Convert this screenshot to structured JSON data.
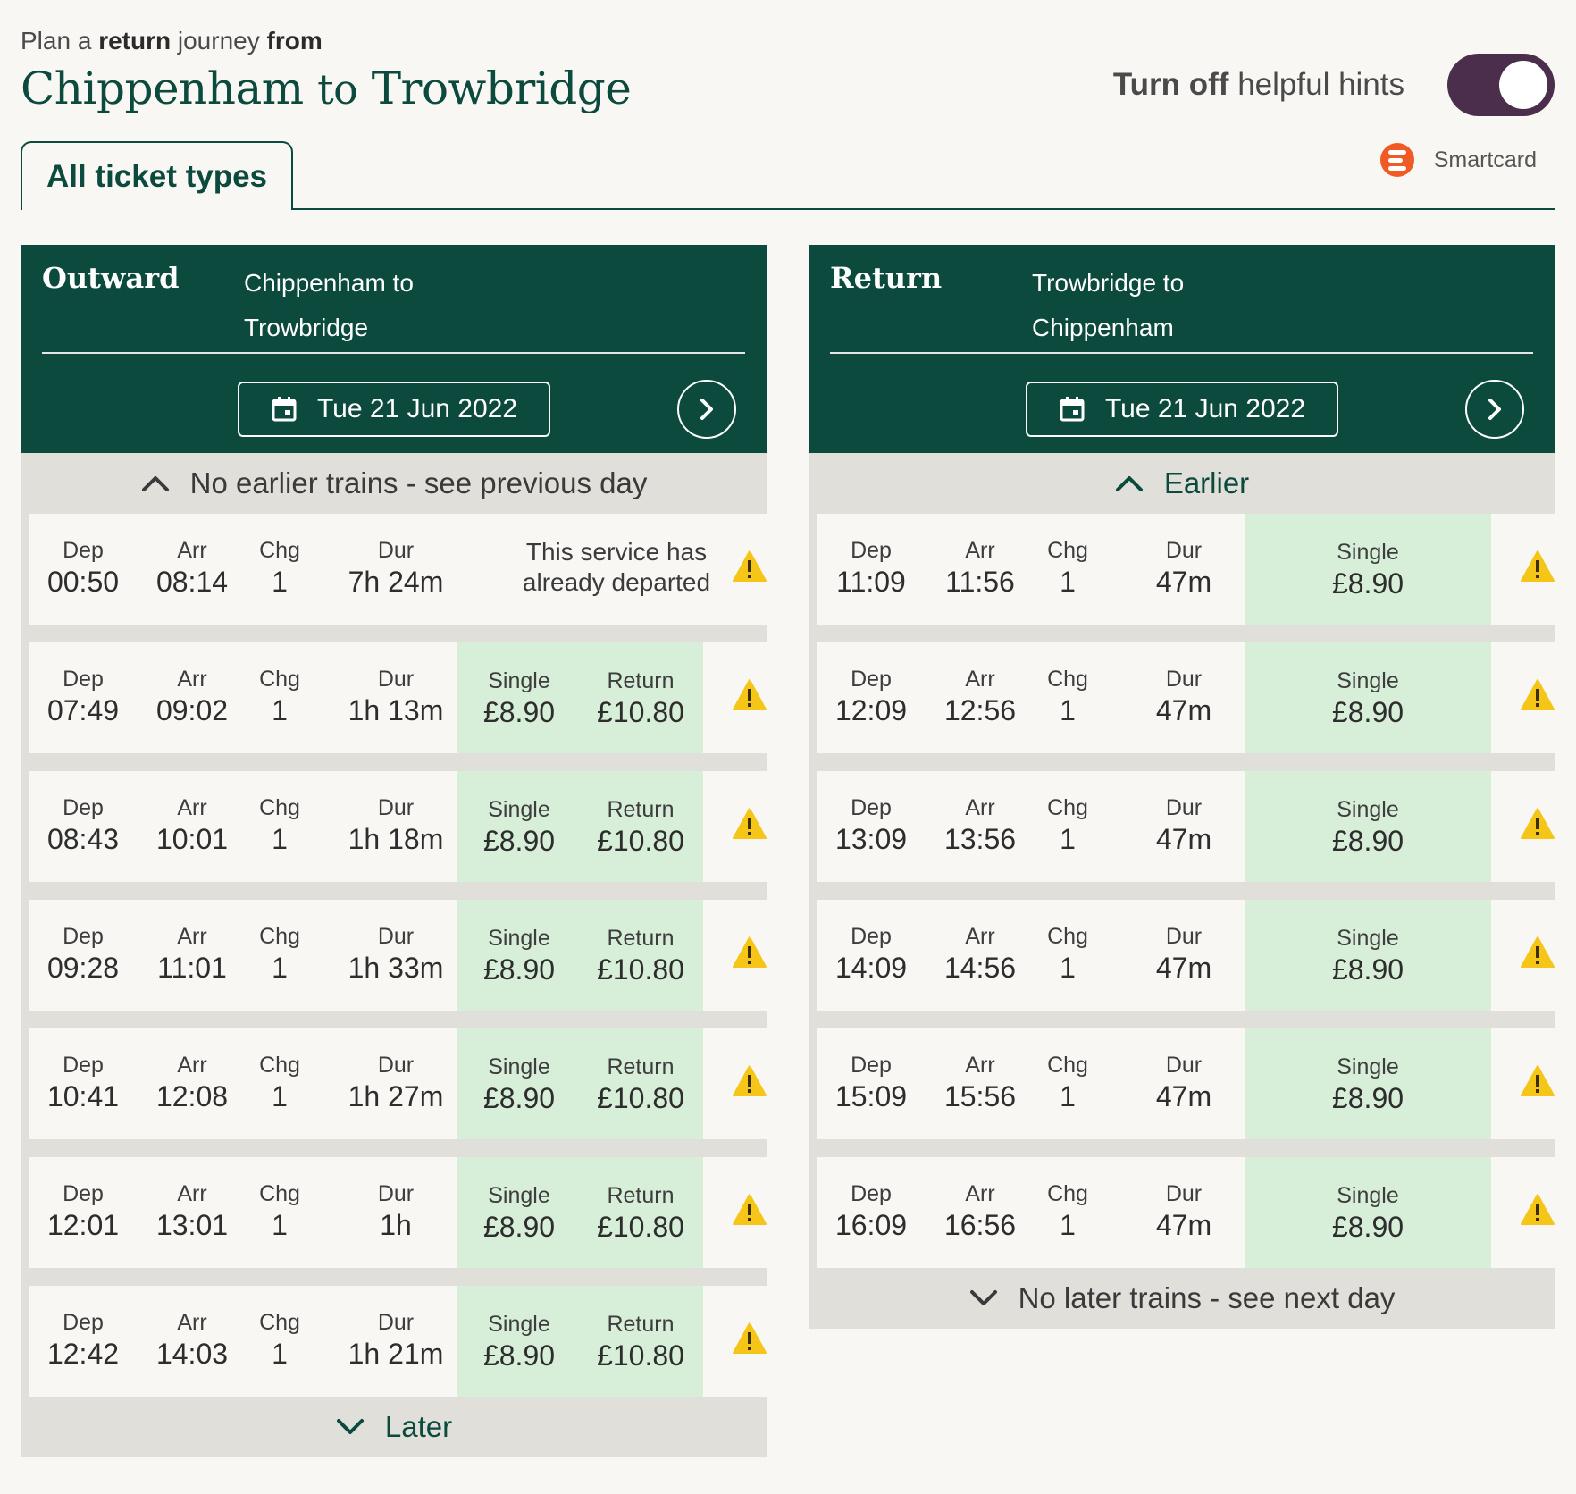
{
  "header": {
    "plan_prefix": "Plan a",
    "plan_bold": "return",
    "plan_middle": "journey",
    "plan_from": "from",
    "origin": "Chippenham",
    "connector": "to",
    "destination": "Trowbridge",
    "hints_bold": "Turn off",
    "hints_rest": "helpful hints",
    "smartcard_label": "Smartcard"
  },
  "tabs": [
    {
      "label": "All ticket types",
      "active": true
    }
  ],
  "colors": {
    "brand_green": "#0c4a3e",
    "price_bg": "#d7eed8",
    "toggle_on": "#4a2e4c",
    "warning": "#f5c518",
    "smartcard": "#f15a24"
  },
  "outward": {
    "title": "Outward",
    "route_line1": "Chippenham to",
    "route_line2": "Trowbridge",
    "date": "Tue 21 Jun 2022",
    "earlier_label": "No earlier trains - see previous day",
    "later_label": "Later",
    "departed_row": {
      "dep_label": "Dep",
      "dep": "00:50",
      "arr_label": "Arr",
      "arr": "08:14",
      "chg_label": "Chg",
      "chg": "1",
      "dur_label": "Dur",
      "dur": "7h 24m",
      "notice_line1": "This service has",
      "notice_line2": "already departed"
    },
    "journeys": [
      {
        "dep_label": "Dep",
        "dep": "07:49",
        "arr_label": "Arr",
        "arr": "09:02",
        "chg_label": "Chg",
        "chg": "1",
        "dur_label": "Dur",
        "dur": "1h 13m",
        "single_label": "Single",
        "single": "£8.90",
        "return_label": "Return",
        "return": "£10.80"
      },
      {
        "dep_label": "Dep",
        "dep": "08:43",
        "arr_label": "Arr",
        "arr": "10:01",
        "chg_label": "Chg",
        "chg": "1",
        "dur_label": "Dur",
        "dur": "1h 18m",
        "single_label": "Single",
        "single": "£8.90",
        "return_label": "Return",
        "return": "£10.80"
      },
      {
        "dep_label": "Dep",
        "dep": "09:28",
        "arr_label": "Arr",
        "arr": "11:01",
        "chg_label": "Chg",
        "chg": "1",
        "dur_label": "Dur",
        "dur": "1h 33m",
        "single_label": "Single",
        "single": "£8.90",
        "return_label": "Return",
        "return": "£10.80"
      },
      {
        "dep_label": "Dep",
        "dep": "10:41",
        "arr_label": "Arr",
        "arr": "12:08",
        "chg_label": "Chg",
        "chg": "1",
        "dur_label": "Dur",
        "dur": "1h 27m",
        "single_label": "Single",
        "single": "£8.90",
        "return_label": "Return",
        "return": "£10.80"
      },
      {
        "dep_label": "Dep",
        "dep": "12:01",
        "arr_label": "Arr",
        "arr": "13:01",
        "chg_label": "Chg",
        "chg": "1",
        "dur_label": "Dur",
        "dur": "1h",
        "single_label": "Single",
        "single": "£8.90",
        "return_label": "Return",
        "return": "£10.80"
      },
      {
        "dep_label": "Dep",
        "dep": "12:42",
        "arr_label": "Arr",
        "arr": "14:03",
        "chg_label": "Chg",
        "chg": "1",
        "dur_label": "Dur",
        "dur": "1h 21m",
        "single_label": "Single",
        "single": "£8.90",
        "return_label": "Return",
        "return": "£10.80"
      }
    ]
  },
  "return": {
    "title": "Return",
    "route_line1": "Trowbridge to",
    "route_line2": "Chippenham",
    "date": "Tue 21 Jun 2022",
    "earlier_label": "Earlier",
    "later_label": "No later trains - see next day",
    "journeys": [
      {
        "dep_label": "Dep",
        "dep": "11:09",
        "arr_label": "Arr",
        "arr": "11:56",
        "chg_label": "Chg",
        "chg": "1",
        "dur_label": "Dur",
        "dur": "47m",
        "single_label": "Single",
        "single": "£8.90"
      },
      {
        "dep_label": "Dep",
        "dep": "12:09",
        "arr_label": "Arr",
        "arr": "12:56",
        "chg_label": "Chg",
        "chg": "1",
        "dur_label": "Dur",
        "dur": "47m",
        "single_label": "Single",
        "single": "£8.90"
      },
      {
        "dep_label": "Dep",
        "dep": "13:09",
        "arr_label": "Arr",
        "arr": "13:56",
        "chg_label": "Chg",
        "chg": "1",
        "dur_label": "Dur",
        "dur": "47m",
        "single_label": "Single",
        "single": "£8.90"
      },
      {
        "dep_label": "Dep",
        "dep": "14:09",
        "arr_label": "Arr",
        "arr": "14:56",
        "chg_label": "Chg",
        "chg": "1",
        "dur_label": "Dur",
        "dur": "47m",
        "single_label": "Single",
        "single": "£8.90"
      },
      {
        "dep_label": "Dep",
        "dep": "15:09",
        "arr_label": "Arr",
        "arr": "15:56",
        "chg_label": "Chg",
        "chg": "1",
        "dur_label": "Dur",
        "dur": "47m",
        "single_label": "Single",
        "single": "£8.90"
      },
      {
        "dep_label": "Dep",
        "dep": "16:09",
        "arr_label": "Arr",
        "arr": "16:56",
        "chg_label": "Chg",
        "chg": "1",
        "dur_label": "Dur",
        "dur": "47m",
        "single_label": "Single",
        "single": "£8.90"
      }
    ]
  }
}
